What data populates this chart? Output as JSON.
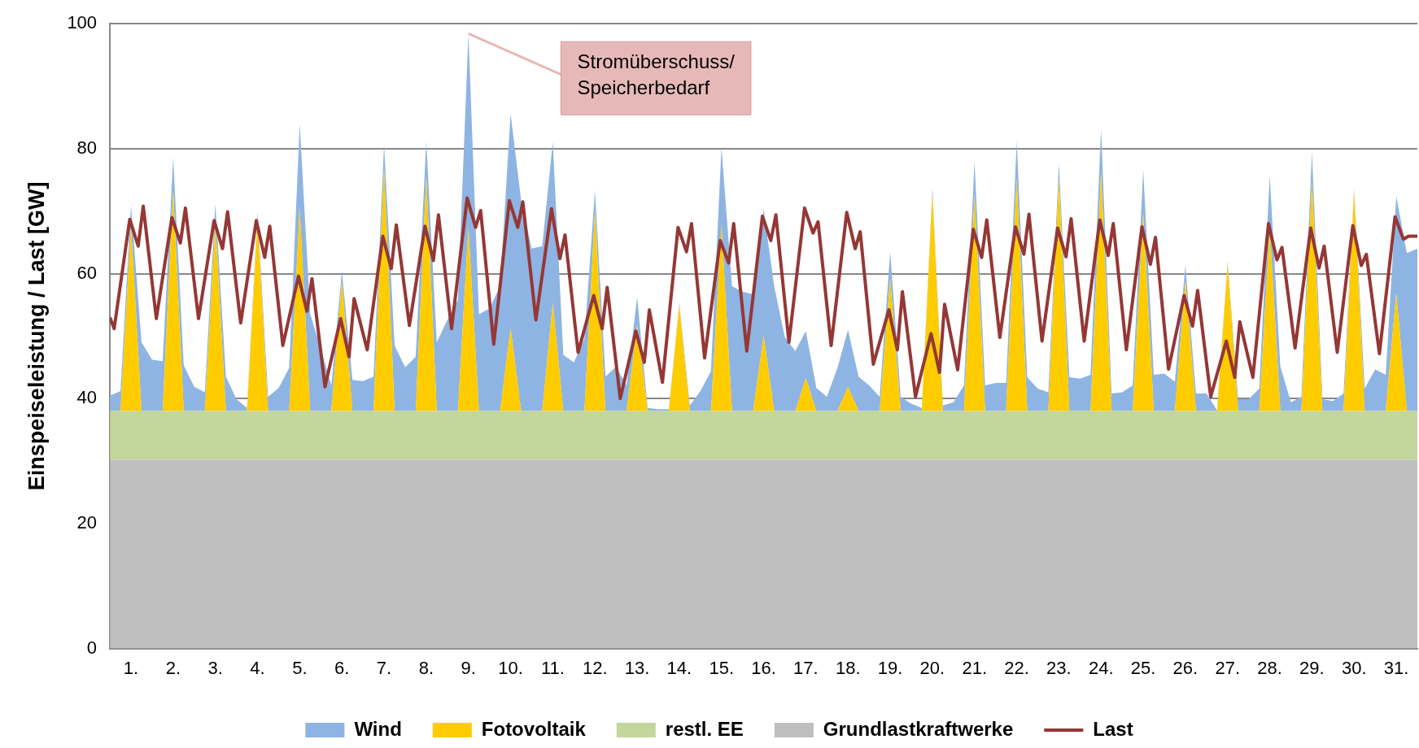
{
  "chart_data": {
    "type": "area",
    "stacked": true,
    "ylabel": "Einspeiseleistung / Last [GW]",
    "legend": "bottom",
    "grid": "y",
    "xlim": [
      0.5,
      31.5
    ],
    "ylim": [
      0,
      100
    ],
    "yticks": [
      0,
      20,
      40,
      60,
      80,
      100
    ],
    "xticks": [
      {
        "value": 1,
        "label": "1."
      },
      {
        "value": 2,
        "label": "2."
      },
      {
        "value": 3,
        "label": "3."
      },
      {
        "value": 4,
        "label": "4."
      },
      {
        "value": 5,
        "label": "5."
      },
      {
        "value": 6,
        "label": "6."
      },
      {
        "value": 7,
        "label": "7."
      },
      {
        "value": 8,
        "label": "8."
      },
      {
        "value": 9,
        "label": "9."
      },
      {
        "value": 10,
        "label": "10."
      },
      {
        "value": 11,
        "label": "11."
      },
      {
        "value": 12,
        "label": "12."
      },
      {
        "value": 13,
        "label": "13."
      },
      {
        "value": 14,
        "label": "14."
      },
      {
        "value": 15,
        "label": "15."
      },
      {
        "value": 16,
        "label": "16."
      },
      {
        "value": 17,
        "label": "17."
      },
      {
        "value": 18,
        "label": "18."
      },
      {
        "value": 19,
        "label": "19."
      },
      {
        "value": 20,
        "label": "20."
      },
      {
        "value": 21,
        "label": "21."
      },
      {
        "value": 22,
        "label": "22."
      },
      {
        "value": 23,
        "label": "23."
      },
      {
        "value": 24,
        "label": "24."
      },
      {
        "value": 25,
        "label": "25."
      },
      {
        "value": 26,
        "label": "26."
      },
      {
        "value": 27,
        "label": "27."
      },
      {
        "value": 28,
        "label": "28."
      },
      {
        "value": 29,
        "label": "29."
      },
      {
        "value": 30,
        "label": "30."
      },
      {
        "value": 31,
        "label": "31."
      }
    ],
    "x": [
      0.5,
      0.75,
      1,
      1.25,
      1.5,
      1.75,
      2,
      2.25,
      2.5,
      2.75,
      3,
      3.25,
      3.5,
      3.75,
      4,
      4.25,
      4.5,
      4.75,
      5,
      5.25,
      5.5,
      5.75,
      6,
      6.25,
      6.5,
      6.75,
      7,
      7.25,
      7.5,
      7.75,
      8,
      8.25,
      8.5,
      8.75,
      9,
      9.25,
      9.5,
      9.75,
      10,
      10.25,
      10.5,
      10.75,
      11,
      11.25,
      11.5,
      11.75,
      12,
      12.25,
      12.5,
      12.75,
      13,
      13.25,
      13.5,
      13.75,
      14,
      14.25,
      14.5,
      14.75,
      15,
      15.25,
      15.5,
      15.75,
      16,
      16.25,
      16.5,
      16.75,
      17,
      17.25,
      17.5,
      17.75,
      18,
      18.25,
      18.5,
      18.75,
      19,
      19.25,
      19.5,
      19.75,
      20,
      20.25,
      20.5,
      20.75,
      21,
      21.25,
      21.5,
      21.75,
      22,
      22.25,
      22.5,
      22.75,
      23,
      23.25,
      23.5,
      23.75,
      24,
      24.25,
      24.5,
      24.75,
      25,
      25.25,
      25.5,
      25.75,
      26,
      26.25,
      26.5,
      26.75,
      27,
      27.25,
      27.5,
      27.75,
      28,
      28.25,
      28.5,
      28.75,
      29,
      29.25,
      29.5,
      29.75,
      30,
      30.25,
      30.5,
      30.75,
      31,
      31.25,
      31.5
    ],
    "series": [
      {
        "name": "Grundlastkraftwerke",
        "type": "area",
        "color": "#bfbfbf",
        "values": [
          30.2,
          30.2,
          30.2,
          30.2,
          30.2,
          30.2,
          30.2,
          30.2,
          30.2,
          30.2,
          30.2,
          30.2,
          30.2,
          30.2,
          30.2,
          30.2,
          30.2,
          30.2,
          30.2,
          30.2,
          30.2,
          30.2,
          30.2,
          30.2,
          30.2,
          30.2,
          30.2,
          30.2,
          30.2,
          30.2,
          30.2,
          30.2,
          30.2,
          30.2,
          30.2,
          30.2,
          30.2,
          30.2,
          30.2,
          30.2,
          30.2,
          30.2,
          30.2,
          30.2,
          30.2,
          30.2,
          30.2,
          30.2,
          30.2,
          30.2,
          30.2,
          30.2,
          30.2,
          30.2,
          30.2,
          30.2,
          30.2,
          30.2,
          30.2,
          30.2,
          30.2,
          30.2,
          30.2,
          30.2,
          30.2,
          30.2,
          30.2,
          30.2,
          30.2,
          30.2,
          30.2,
          30.2,
          30.2,
          30.2,
          30.2,
          30.2,
          30.2,
          30.2,
          30.2,
          30.2,
          30.2,
          30.2,
          30.2,
          30.2,
          30.2,
          30.2,
          30.2,
          30.2,
          30.2,
          30.2,
          30.2,
          30.2,
          30.2,
          30.2,
          30.2,
          30.2,
          30.2,
          30.2,
          30.2,
          30.2,
          30.2,
          30.2,
          30.2,
          30.2,
          30.2,
          30.2,
          30.2,
          30.2,
          30.2,
          30.2,
          30.2,
          30.2,
          30.2,
          30.2,
          30.2,
          30.2,
          30.2,
          30.2,
          30.2,
          30.2,
          30.2,
          30.2,
          30.2,
          30.2,
          30.2
        ]
      },
      {
        "name": "restl. EE",
        "type": "area",
        "color": "#c3d69b",
        "values": [
          7.8,
          7.8,
          7.8,
          7.8,
          7.8,
          7.8,
          7.8,
          7.8,
          7.8,
          7.8,
          7.8,
          7.8,
          7.8,
          7.8,
          7.8,
          7.8,
          7.8,
          7.8,
          7.8,
          7.8,
          7.8,
          7.8,
          7.8,
          7.8,
          7.8,
          7.8,
          7.8,
          7.8,
          7.8,
          7.8,
          7.8,
          7.8,
          7.8,
          7.8,
          7.8,
          7.8,
          7.8,
          7.8,
          7.8,
          7.8,
          7.8,
          7.8,
          7.8,
          7.8,
          7.8,
          7.8,
          7.8,
          7.8,
          7.8,
          7.8,
          7.8,
          7.8,
          7.8,
          7.8,
          7.8,
          7.8,
          7.8,
          7.8,
          7.8,
          7.8,
          7.8,
          7.8,
          7.8,
          7.8,
          7.8,
          7.8,
          7.8,
          7.8,
          7.8,
          7.8,
          7.8,
          7.8,
          7.8,
          7.8,
          7.8,
          7.8,
          7.8,
          7.8,
          7.8,
          7.8,
          7.8,
          7.8,
          7.8,
          7.8,
          7.8,
          7.8,
          7.8,
          7.8,
          7.8,
          7.8,
          7.8,
          7.8,
          7.8,
          7.8,
          7.8,
          7.8,
          7.8,
          7.8,
          7.8,
          7.8,
          7.8,
          7.8,
          7.8,
          7.8,
          7.8,
          7.8,
          7.8,
          7.8,
          7.8,
          7.8,
          7.8,
          7.8,
          7.8,
          7.8,
          7.8,
          7.8,
          7.8,
          7.8,
          7.8,
          7.8,
          7.8,
          7.8,
          7.8,
          7.8,
          7.8
        ]
      },
      {
        "name": "Fotovoltaik",
        "type": "area",
        "color": "#ffcc00",
        "values": [
          0,
          0,
          29.6,
          0,
          0,
          0,
          35.3,
          0,
          0,
          0,
          30.0,
          0,
          0,
          0,
          30.7,
          0,
          0,
          0,
          32.4,
          0,
          0,
          0,
          20.7,
          0,
          0,
          0,
          38.9,
          0,
          0,
          0,
          37.5,
          0,
          0,
          0,
          29.4,
          0,
          0,
          0,
          13.3,
          0,
          0,
          0,
          17.3,
          0,
          0,
          0,
          31.9,
          0,
          0,
          0,
          13.7,
          0,
          0,
          0,
          16.9,
          0,
          0,
          0,
          29.7,
          0,
          0,
          0,
          12.1,
          0,
          0,
          0,
          5.3,
          0,
          0,
          0,
          3.9,
          0,
          0,
          0,
          21.2,
          0,
          0,
          0,
          34.8,
          0,
          0,
          0,
          34.6,
          0,
          0,
          0,
          37.3,
          0,
          0,
          0,
          37.3,
          0,
          0,
          0,
          38.2,
          0,
          0,
          0,
          31.7,
          0,
          0,
          0,
          20.9,
          0,
          0,
          0,
          23.5,
          0,
          0,
          0,
          29.3,
          0,
          0,
          0,
          36.8,
          0,
          0,
          0,
          35.3,
          0,
          0,
          0,
          18.9,
          0,
          0
        ]
      },
      {
        "name": "Wind",
        "type": "area",
        "color": "#8eb4e3",
        "values": [
          2.5,
          3.2,
          3.3,
          11.0,
          8.2,
          8.0,
          5.3,
          7.3,
          3.9,
          3.0,
          3.2,
          5.5,
          1.9,
          0.5,
          1.2,
          2.3,
          3.7,
          6.9,
          13.6,
          15.5,
          10.0,
          4.1,
          1.7,
          5.0,
          4.8,
          5.5,
          3.7,
          10.5,
          7.0,
          8.7,
          5.7,
          11.0,
          14.6,
          17.8,
          31.0,
          15.5,
          16.4,
          20.0,
          34.3,
          33.7,
          26.0,
          26.4,
          25.8,
          9.0,
          7.8,
          11.6,
          3.4,
          5.5,
          7.1,
          4.1,
          4.5,
          0.5,
          0.3,
          0.3,
          0.4,
          0.9,
          3.2,
          6.4,
          12.5,
          20.0,
          19.1,
          18.7,
          20.2,
          20.0,
          11.9,
          9.6,
          7.5,
          3.7,
          2.3,
          6.9,
          9.1,
          5.5,
          4.1,
          2.3,
          4.3,
          2.3,
          1.2,
          0.5,
          0.9,
          0.9,
          1.4,
          4.1,
          5.4,
          4.1,
          4.5,
          4.5,
          5.9,
          5.4,
          3.6,
          3.0,
          2.4,
          5.4,
          5.2,
          5.8,
          7.0,
          2.8,
          3.0,
          4.1,
          6.9,
          5.8,
          6.0,
          4.7,
          2.4,
          2.8,
          2.8,
          0.1,
          0.5,
          1.9,
          1.9,
          3.6,
          8.4,
          7.2,
          1.4,
          2.3,
          4.7,
          1.9,
          1.6,
          2.8,
          0.4,
          3.6,
          6.7,
          5.8,
          15.5,
          25.3,
          26.0
        ]
      },
      {
        "name": "Last",
        "type": "line",
        "color": "#953735",
        "x": [
          0.5,
          0.6,
          0.97,
          1.17,
          1.29,
          1.6,
          1.97,
          2.17,
          2.29,
          2.6,
          2.97,
          3.17,
          3.29,
          3.6,
          3.97,
          4.17,
          4.29,
          4.6,
          4.97,
          5.17,
          5.29,
          5.6,
          5.97,
          6.17,
          6.29,
          6.6,
          6.97,
          7.17,
          7.29,
          7.6,
          7.97,
          8.17,
          8.29,
          8.6,
          8.97,
          9.17,
          9.29,
          9.6,
          9.97,
          10.17,
          10.29,
          10.6,
          10.97,
          11.17,
          11.29,
          11.6,
          11.97,
          12.17,
          12.29,
          12.6,
          12.97,
          13.17,
          13.29,
          13.6,
          13.97,
          14.17,
          14.29,
          14.6,
          14.97,
          15.17,
          15.29,
          15.6,
          15.97,
          16.17,
          16.29,
          16.6,
          16.97,
          17.17,
          17.29,
          17.6,
          17.97,
          18.17,
          18.29,
          18.6,
          18.97,
          19.17,
          19.29,
          19.6,
          19.97,
          20.17,
          20.29,
          20.6,
          20.97,
          21.17,
          21.29,
          21.6,
          21.97,
          22.17,
          22.29,
          22.6,
          22.97,
          23.17,
          23.29,
          23.6,
          23.97,
          24.17,
          24.29,
          24.6,
          24.97,
          25.17,
          25.29,
          25.6,
          25.97,
          26.17,
          26.29,
          26.6,
          26.97,
          27.17,
          27.29,
          27.6,
          27.97,
          28.17,
          28.29,
          28.6,
          28.97,
          29.17,
          29.29,
          29.6,
          29.97,
          30.17,
          30.29,
          30.6,
          30.97,
          31.17,
          31.29,
          31.5
        ],
        "values": [
          53,
          51.2,
          68.7,
          64.4,
          70.8,
          52.8,
          69,
          64.9,
          70.5,
          52.8,
          68.5,
          64,
          69.9,
          52.1,
          68.5,
          62.6,
          67.6,
          48.5,
          59.6,
          54,
          59.2,
          41.9,
          52.8,
          46.7,
          56,
          47.8,
          66,
          60.8,
          67.8,
          51.7,
          67.6,
          62.1,
          69.4,
          51.2,
          72.1,
          67.4,
          70.1,
          48.7,
          71.7,
          67.4,
          71.5,
          52.6,
          70.4,
          62.4,
          66.2,
          47.4,
          56.5,
          51.2,
          57.8,
          40,
          50.8,
          45.8,
          54.2,
          42.6,
          67.4,
          63.5,
          68,
          46.5,
          65.3,
          61.7,
          68,
          47.6,
          69.2,
          65.3,
          69.4,
          49,
          70.5,
          66.5,
          68.3,
          48.5,
          69.8,
          64,
          66.7,
          45.5,
          54.2,
          47.8,
          57.1,
          40.3,
          50.4,
          44.2,
          55.1,
          44.6,
          67.1,
          62.6,
          68.6,
          49.8,
          67.5,
          63.1,
          69.5,
          49.2,
          67.3,
          62.7,
          68.8,
          49.2,
          68.6,
          62.9,
          68,
          47.8,
          67.5,
          61.5,
          65.8,
          44.7,
          56.5,
          51.6,
          57.3,
          40.3,
          49.2,
          43.4,
          52.3,
          43.4,
          68,
          62.2,
          64.2,
          48.1,
          67.3,
          60.9,
          64.4,
          47.4,
          67.7,
          61.3,
          63.1,
          47.2,
          69.1,
          65.5,
          66,
          66
        ]
      }
    ],
    "annotations": [
      {
        "text": "Stromüberschuss/\nSpeicherbedarf",
        "x": 9,
        "y": 98.4
      }
    ]
  }
}
